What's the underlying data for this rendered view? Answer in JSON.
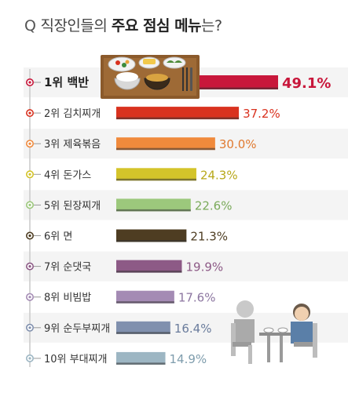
{
  "title": {
    "q": "Q",
    "pre": "직장인들의",
    "bold": "주요 점심 메뉴",
    "post": "는?"
  },
  "colors": {
    "timeline": "#c9c9c9",
    "row_band": "#f4f4f4",
    "bar_outline": "#333333"
  },
  "chart_data": {
    "type": "bar",
    "orientation": "horizontal",
    "title": "직장인들의 주요 점심 메뉴는?",
    "xlim": [
      0,
      100
    ],
    "unit": "%",
    "categories": [
      "1위 백반",
      "2위 김치찌개",
      "3위 제육볶음",
      "4위 돈가스",
      "5위 된장찌개",
      "6위 면",
      "7위 순댓국",
      "8위 비빔밥",
      "9위 순두부찌개",
      "10위 부대찌개"
    ],
    "values": [
      49.1,
      37.2,
      30.0,
      24.3,
      22.6,
      21.3,
      19.9,
      17.6,
      16.4,
      14.9
    ],
    "value_labels": [
      "49.1%",
      "37.2%",
      "30.0%",
      "24.3%",
      "22.6%",
      "21.3%",
      "19.9%",
      "17.6%",
      "16.4%",
      "14.9%"
    ],
    "colors": [
      "#c8173b",
      "#d9321f",
      "#f08a3c",
      "#d4c42a",
      "#9cc87c",
      "#4e3d22",
      "#8d5a86",
      "#a48bb4",
      "#8090ae",
      "#9db6c3"
    ],
    "label_colors": [
      "#c8173b",
      "#d9321f",
      "#e07a30",
      "#b8a81a",
      "#7aaa5a",
      "#4e3d22",
      "#8d5a86",
      "#8c76a0",
      "#6a7c9c",
      "#7f9dad"
    ]
  }
}
